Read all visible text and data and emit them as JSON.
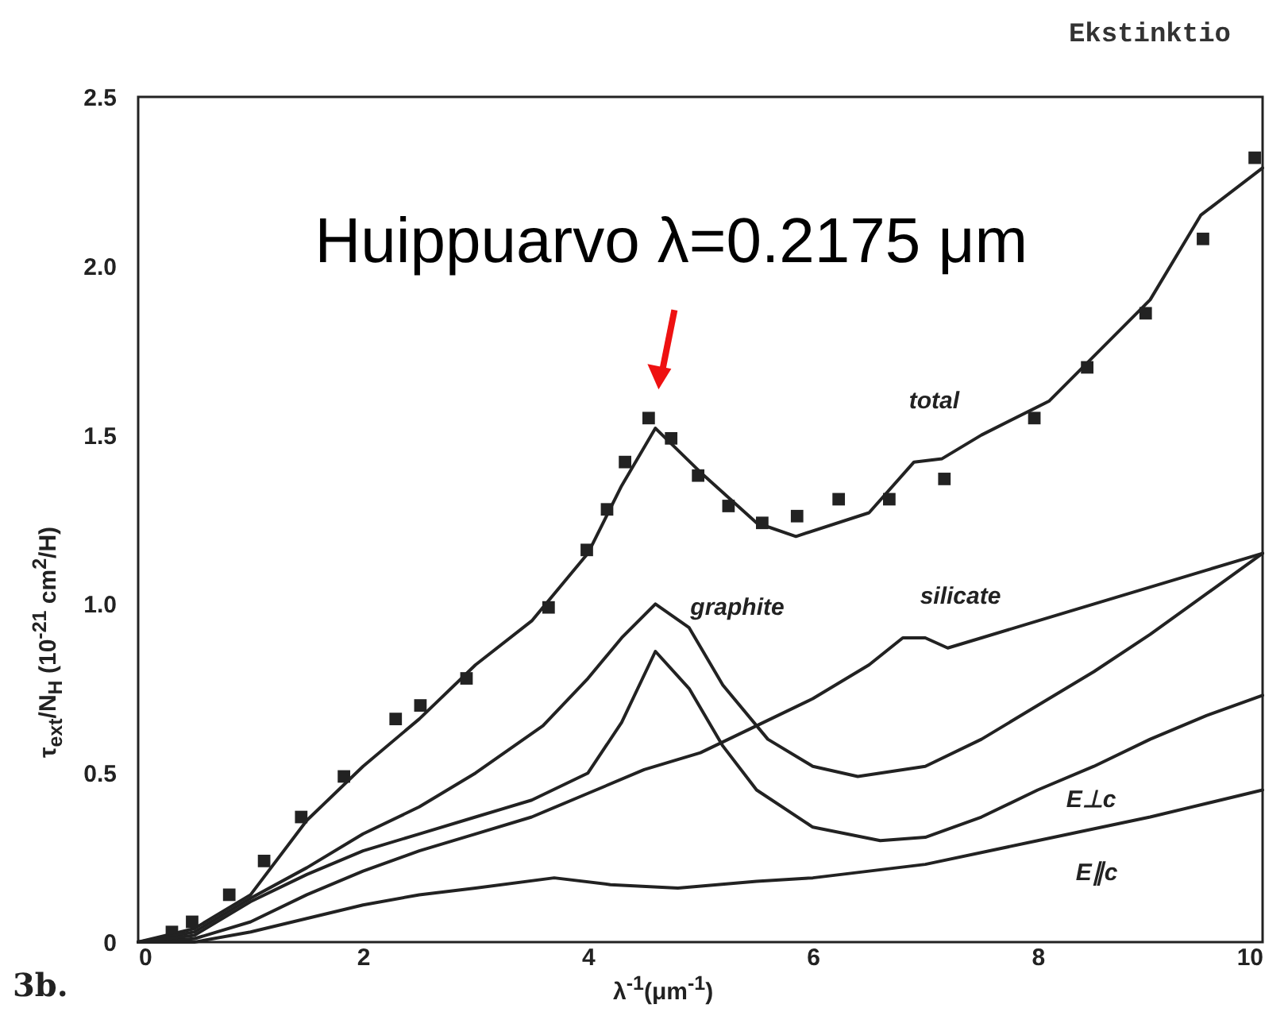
{
  "chart_data": {
    "type": "line",
    "title": "Ekstinktio",
    "xlabel": "λ$^{-1}$(μm$^{-1}$)",
    "ylabel": "τ$_{ext}$/N$_{H}$ (10$^{-21}$ cm$^{2}$/H)",
    "xlim": [
      0,
      10
    ],
    "ylim": [
      0,
      2.5
    ],
    "xticks": [
      0,
      2,
      4,
      6,
      8,
      10
    ],
    "yticks": [
      0,
      0.5,
      {
        "value": 1,
        "label": "1.0"
      },
      1.5,
      {
        "value": 2,
        "label": "2.0"
      },
      2.5
    ],
    "grid": false,
    "series": [
      {
        "name": "total",
        "color": "#222222",
        "x": [
          0,
          0.5,
          1,
          1.5,
          2,
          2.5,
          3,
          3.5,
          4,
          4.3,
          4.6,
          5,
          5.5,
          5.85,
          6.5,
          6.9,
          7.15,
          7.5,
          8.1,
          9,
          9.45,
          10
        ],
        "values": [
          0,
          0.04,
          0.14,
          0.36,
          0.52,
          0.66,
          0.82,
          0.95,
          1.15,
          1.35,
          1.52,
          1.39,
          1.24,
          1.2,
          1.27,
          1.42,
          1.43,
          1.5,
          1.6,
          1.9,
          2.15,
          2.29
        ]
      },
      {
        "type": "scatter",
        "marker": "square",
        "color": "#222222",
        "x": [
          0.3,
          0.48,
          0.81,
          1.12,
          1.45,
          1.83,
          2.29,
          2.51,
          2.92,
          3.65,
          3.99,
          4.17,
          4.33,
          4.54,
          4.74,
          4.98,
          5.25,
          5.55,
          5.86,
          6.23,
          6.68,
          7.17,
          7.97,
          8.44,
          8.96,
          9.47,
          9.93
        ],
        "values": [
          0.03,
          0.06,
          0.14,
          0.24,
          0.37,
          0.49,
          0.66,
          0.7,
          0.78,
          0.99,
          1.16,
          1.28,
          1.42,
          1.55,
          1.49,
          1.38,
          1.29,
          1.24,
          1.26,
          1.31,
          1.31,
          1.37,
          1.55,
          1.7,
          1.86,
          2.08,
          2.32
        ]
      },
      {
        "name": "graphite",
        "color": "#222222",
        "x": [
          0,
          0.5,
          1,
          1.5,
          2,
          2.5,
          3,
          3.6,
          4,
          4.3,
          4.6,
          4.9,
          5.2,
          5.6,
          6,
          6.4,
          7,
          7.5,
          8,
          8.5,
          9,
          9.5,
          10
        ],
        "values": [
          0,
          0.03,
          0.13,
          0.22,
          0.32,
          0.4,
          0.5,
          0.64,
          0.78,
          0.9,
          1.0,
          0.93,
          0.76,
          0.6,
          0.52,
          0.49,
          0.52,
          0.6,
          0.7,
          0.8,
          0.91,
          1.03,
          1.15
        ]
      },
      {
        "name": "silicate",
        "color": "#222222",
        "x": [
          0,
          0.5,
          1,
          1.5,
          2,
          2.5,
          3,
          3.5,
          4,
          4.5,
          5,
          5.5,
          6,
          6.5,
          6.8,
          7,
          7.2,
          7.5,
          8,
          8.5,
          9,
          9.5,
          10
        ],
        "values": [
          0,
          0.01,
          0.06,
          0.14,
          0.21,
          0.27,
          0.32,
          0.37,
          0.44,
          0.51,
          0.56,
          0.64,
          0.72,
          0.82,
          0.9,
          0.9,
          0.87,
          0.9,
          0.95,
          1.0,
          1.05,
          1.1,
          1.15
        ]
      },
      {
        "name": "E⊥c",
        "color": "#222222",
        "x": [
          0,
          0.5,
          1,
          1.5,
          2,
          2.5,
          3,
          3.5,
          4,
          4.3,
          4.6,
          4.9,
          5.2,
          5.5,
          6,
          6.6,
          7,
          7.5,
          8,
          8.5,
          9,
          9.5,
          10
        ],
        "values": [
          0,
          0.02,
          0.12,
          0.2,
          0.27,
          0.32,
          0.37,
          0.42,
          0.5,
          0.65,
          0.86,
          0.75,
          0.58,
          0.45,
          0.34,
          0.3,
          0.31,
          0.37,
          0.45,
          0.52,
          0.6,
          0.67,
          0.73
        ]
      },
      {
        "name": "E∥c",
        "color": "#222222",
        "x": [
          0,
          0.5,
          1,
          1.5,
          2,
          2.5,
          3,
          3.7,
          4.2,
          4.8,
          5.5,
          6,
          7,
          8,
          9,
          10
        ],
        "values": [
          0,
          0,
          0.03,
          0.07,
          0.11,
          0.14,
          0.16,
          0.19,
          0.17,
          0.16,
          0.18,
          0.19,
          0.23,
          0.3,
          0.37,
          0.45
        ]
      }
    ],
    "annotations": [
      "3b.",
      {
        "text": "Huippuarvo λ=0.2175 μm",
        "x": 4.6,
        "y": 1.55
      }
    ]
  }
}
